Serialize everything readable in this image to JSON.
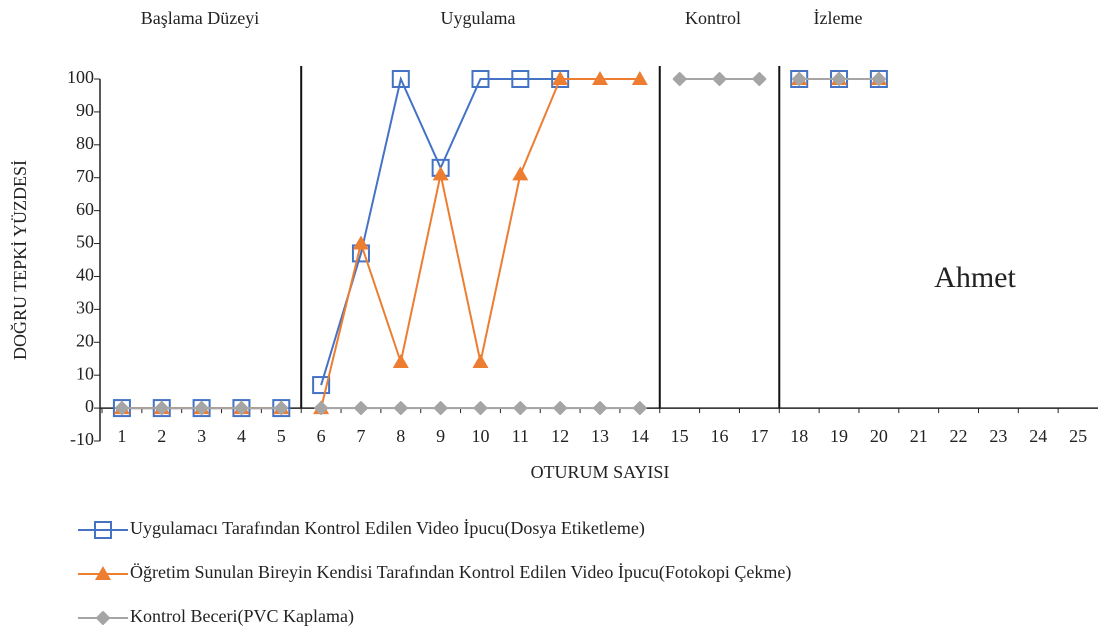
{
  "chart_data": {
    "type": "line",
    "annotation": "Ahmet",
    "x_label": "OTURUM SAYISI",
    "y_label": "DOĞRU TEPKİ YÜZDESİ",
    "phases": [
      "Başlama Düzeyi",
      "Uygulama",
      "Kontrol",
      "İzleme"
    ],
    "phase_lines": [
      5.5,
      14.5,
      17.5
    ],
    "categories": [
      "1",
      "2",
      "3",
      "4",
      "5",
      "6",
      "7",
      "8",
      "9",
      "10",
      "11",
      "12",
      "13",
      "14",
      "15",
      "16",
      "17",
      "18",
      "19",
      "20",
      "21",
      "22",
      "23",
      "24",
      "25"
    ],
    "series": [
      {
        "name": "Uygulamacı Tarafından Kontrol Edilen Video İpucu(Dosya Etiketleme)",
        "color": "#4472c4",
        "marker": "square",
        "values": [
          0,
          0,
          0,
          0,
          0,
          7,
          47,
          100,
          73,
          100,
          100,
          100,
          null,
          null,
          null,
          null,
          null,
          100,
          100,
          100,
          null,
          null,
          null,
          null,
          null
        ]
      },
      {
        "name": "Öğretim Sunulan Bireyin Kendisi Tarafından Kontrol Edilen Video İpucu(Fotokopi Çekme)",
        "color": "#ed7d31",
        "marker": "triangle",
        "values": [
          0,
          0,
          0,
          0,
          0,
          0,
          50,
          14,
          71,
          14,
          71,
          100,
          100,
          100,
          null,
          null,
          null,
          100,
          100,
          100,
          null,
          null,
          null,
          null,
          null
        ]
      },
      {
        "name": "Kontrol Beceri(PVC Kaplama)",
        "color": "#a5a5a5",
        "marker": "diamond",
        "values": [
          0,
          0,
          0,
          0,
          0,
          0,
          0,
          0,
          0,
          0,
          0,
          0,
          0,
          0,
          100,
          100,
          100,
          100,
          100,
          100,
          null,
          null,
          null,
          null,
          null
        ]
      }
    ],
    "ylim": [
      -10,
      100
    ],
    "yticks": [
      -10,
      0,
      10,
      20,
      30,
      40,
      50,
      60,
      70,
      80,
      90,
      100
    ]
  }
}
